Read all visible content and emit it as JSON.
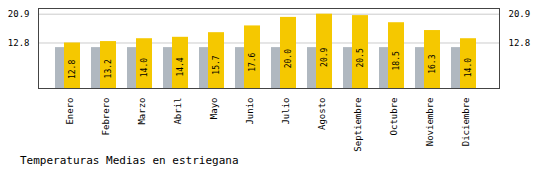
{
  "chart_data": {
    "type": "bar",
    "title": "Temperaturas Medias en estriegana",
    "categories": [
      "Enero",
      "Febrero",
      "Marzo",
      "Abril",
      "Mayo",
      "Junio",
      "Julio",
      "Agosto",
      "Septiembre",
      "Octubre",
      "Noviembre",
      "Diciembre"
    ],
    "series": [
      {
        "color": "#B0B8C0",
        "values": [
          11.5,
          11.5,
          11.5,
          11.5,
          11.5,
          11.5,
          11.5,
          11.5,
          11.5,
          11.5,
          11.5,
          11.5
        ]
      },
      {
        "color": "#F5C800",
        "values": [
          12.8,
          13.2,
          14.0,
          14.4,
          15.7,
          17.6,
          20.0,
          20.9,
          20.5,
          18.5,
          16.3,
          14.0
        ],
        "value_labels": [
          "12.8",
          "13.2",
          "14.0",
          "14.4",
          "15.7",
          "17.6",
          "20.0",
          "20.9",
          "20.5",
          "18.5",
          "16.3",
          "14.0"
        ],
        "data_labels": true
      }
    ],
    "ylim": [
      0,
      22.5
    ],
    "yticks": [
      12.8,
      20.9
    ],
    "grid": true
  }
}
